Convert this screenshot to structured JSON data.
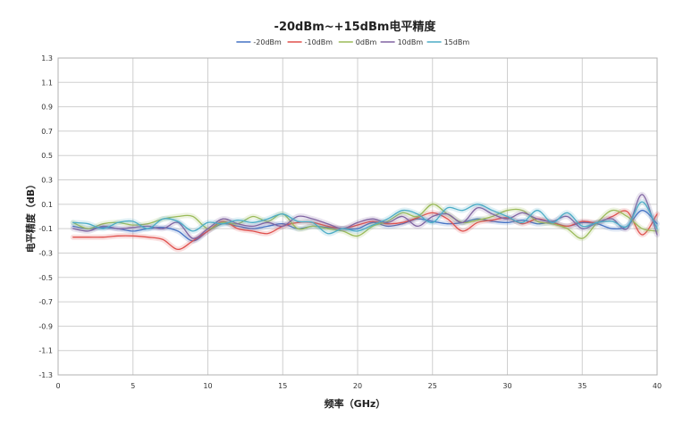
{
  "chart_data": {
    "type": "line",
    "title": "-20dBm~+15dBm电平精度",
    "xlabel": "频率（GHz）",
    "ylabel": "电平精度（dB）",
    "xlim": [
      0,
      40
    ],
    "ylim": [
      -1.3,
      1.3
    ],
    "xticks": [
      "0",
      "5",
      "10",
      "15",
      "20",
      "25",
      "30",
      "35",
      "40"
    ],
    "yticks": [
      "1.3",
      "1.1",
      "0.9",
      "0.7",
      "0.5",
      "0.3",
      "0.1",
      "-0.1",
      "-0.3",
      "-0.5",
      "-0.7",
      "-0.9",
      "-1.1",
      "-1.3"
    ],
    "grid": true,
    "legend_position": "top",
    "x": [
      1,
      2,
      3,
      4,
      5,
      6,
      7,
      8,
      9,
      10,
      11,
      12,
      13,
      14,
      15,
      16,
      17,
      18,
      19,
      20,
      21,
      22,
      23,
      24,
      25,
      26,
      27,
      28,
      29,
      30,
      31,
      32,
      33,
      34,
      35,
      36,
      37,
      38,
      39,
      40
    ],
    "series": [
      {
        "name": "-20dBm",
        "color": "#4472C4",
        "values": [
          -0.08,
          -0.1,
          -0.09,
          -0.1,
          -0.12,
          -0.1,
          -0.09,
          -0.12,
          -0.2,
          -0.12,
          -0.06,
          -0.08,
          -0.1,
          -0.08,
          -0.06,
          -0.1,
          -0.08,
          -0.09,
          -0.1,
          -0.1,
          -0.05,
          -0.08,
          -0.06,
          -0.02,
          -0.04,
          -0.06,
          -0.05,
          -0.02,
          -0.04,
          -0.05,
          -0.03,
          -0.06,
          -0.05,
          -0.08,
          -0.05,
          -0.06,
          -0.1,
          -0.08,
          0.05,
          -0.06
        ]
      },
      {
        "name": "-10dBm",
        "color": "#E0504D",
        "values": [
          -0.17,
          -0.17,
          -0.17,
          -0.16,
          -0.16,
          -0.17,
          -0.19,
          -0.27,
          -0.2,
          -0.12,
          -0.04,
          -0.1,
          -0.12,
          -0.14,
          -0.08,
          -0.05,
          -0.05,
          -0.08,
          -0.1,
          -0.07,
          -0.04,
          -0.06,
          -0.05,
          -0.01,
          0.03,
          -0.02,
          -0.12,
          -0.05,
          -0.03,
          -0.01,
          -0.06,
          -0.02,
          -0.05,
          -0.08,
          -0.04,
          -0.05,
          0.0,
          0.04,
          -0.15,
          0.02
        ]
      },
      {
        "name": "0dBm",
        "color": "#9BBB59",
        "values": [
          -0.05,
          -0.1,
          -0.06,
          -0.05,
          -0.07,
          -0.06,
          -0.02,
          0.0,
          0.0,
          -0.1,
          -0.05,
          -0.06,
          0.0,
          -0.04,
          0.02,
          -0.1,
          -0.08,
          -0.1,
          -0.12,
          -0.16,
          -0.08,
          -0.04,
          0.03,
          0.0,
          0.1,
          0.02,
          -0.05,
          -0.03,
          0.0,
          0.05,
          0.05,
          -0.04,
          -0.06,
          -0.1,
          -0.18,
          -0.05,
          0.05,
          0.0,
          -0.1,
          -0.12
        ]
      },
      {
        "name": "10dBm",
        "color": "#8064A2",
        "values": [
          -0.1,
          -0.12,
          -0.08,
          -0.1,
          -0.09,
          -0.08,
          -0.1,
          -0.05,
          -0.18,
          -0.1,
          -0.02,
          -0.06,
          -0.08,
          -0.05,
          -0.08,
          0.0,
          -0.02,
          -0.06,
          -0.1,
          -0.05,
          -0.02,
          -0.05,
          0.0,
          -0.08,
          0.0,
          0.02,
          -0.05,
          0.07,
          0.02,
          -0.02,
          0.03,
          -0.02,
          -0.04,
          0.0,
          -0.1,
          -0.05,
          -0.02,
          -0.1,
          0.18,
          -0.15
        ]
      },
      {
        "name": "15dBm",
        "color": "#4BACC6",
        "values": [
          -0.05,
          -0.06,
          -0.1,
          -0.05,
          -0.04,
          -0.1,
          -0.02,
          -0.04,
          -0.12,
          -0.05,
          -0.06,
          -0.03,
          -0.05,
          -0.02,
          0.02,
          -0.04,
          -0.05,
          -0.14,
          -0.1,
          -0.12,
          -0.07,
          -0.02,
          0.05,
          0.02,
          -0.05,
          0.07,
          0.05,
          0.1,
          0.05,
          0.0,
          -0.05,
          0.05,
          -0.05,
          0.03,
          -0.08,
          -0.05,
          -0.04,
          -0.08,
          0.12,
          -0.1
        ]
      }
    ]
  }
}
